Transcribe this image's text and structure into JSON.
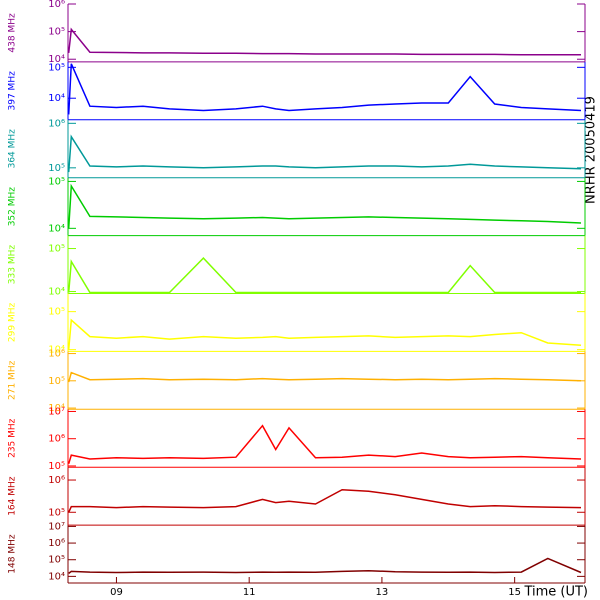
{
  "chart_data": {
    "type": "line",
    "title": "NRHR 20050419",
    "xlabel": "Time (UT)",
    "log_y": true,
    "xlim": [
      8.27,
      16.06
    ],
    "xticks": [
      {
        "value": 9,
        "label": "09"
      },
      {
        "value": 11,
        "label": "11"
      },
      {
        "value": 13,
        "label": "13"
      },
      {
        "value": 15,
        "label": "15"
      }
    ],
    "x": [
      8.28,
      8.32,
      8.6,
      9.0,
      9.4,
      9.8,
      10.31,
      10.8,
      11.2,
      11.4,
      11.6,
      12.0,
      12.4,
      12.8,
      13.2,
      13.6,
      14.0,
      14.33,
      14.7,
      15.1,
      15.5,
      16.0
    ],
    "series": [
      {
        "name": "438 MHz",
        "color": "#8b008b",
        "ylim": [
          8000,
          1000000
        ],
        "yticks": [
          {
            "value": 10000,
            "label": "10⁴"
          },
          {
            "value": 100000,
            "label": "10⁵"
          },
          {
            "value": 1000000,
            "label": "10⁶"
          }
        ],
        "values": [
          17000,
          120000,
          18000,
          17500,
          17000,
          17000,
          16500,
          16500,
          16000,
          16000,
          16000,
          15500,
          15500,
          15500,
          15500,
          15000,
          15000,
          15000,
          15000,
          14500,
          14500,
          14500
        ]
      },
      {
        "name": "397 MHz",
        "color": "#0000ff",
        "ylim": [
          2000,
          150000
        ],
        "yticks": [
          {
            "value": 10000,
            "label": "10⁴"
          },
          {
            "value": 100000,
            "label": "10⁵"
          }
        ],
        "values": [
          3000,
          130000,
          5500,
          5000,
          5500,
          4500,
          4000,
          4500,
          5500,
          4500,
          4000,
          4500,
          5000,
          6000,
          6500,
          7000,
          7000,
          50000,
          6500,
          5000,
          4500,
          4000
        ]
      },
      {
        "name": "364 MHz",
        "color": "#009999",
        "ylim": [
          60000,
          1200000
        ],
        "yticks": [
          {
            "value": 100000,
            "label": "10⁵"
          },
          {
            "value": 1000000,
            "label": "10⁶"
          }
        ],
        "values": [
          80000,
          500000,
          110000,
          105000,
          110000,
          105000,
          100000,
          105000,
          110000,
          110000,
          105000,
          100000,
          105000,
          110000,
          110000,
          105000,
          110000,
          120000,
          110000,
          105000,
          100000,
          95000
        ]
      },
      {
        "name": "352 MHz",
        "color": "#00cc00",
        "ylim": [
          7000,
          120000
        ],
        "yticks": [
          {
            "value": 10000,
            "label": "10⁴"
          },
          {
            "value": 100000,
            "label": "10⁵"
          }
        ],
        "values": [
          10000,
          80000,
          18000,
          17500,
          17000,
          16500,
          16000,
          16500,
          17000,
          16500,
          16000,
          16500,
          17000,
          17500,
          17000,
          16500,
          16000,
          15500,
          15000,
          14500,
          14000,
          13000
        ]
      },
      {
        "name": "333 MHz",
        "color": "#80ff00",
        "ylim": [
          9000,
          200000
        ],
        "yticks": [
          {
            "value": 10000,
            "label": "10⁴"
          },
          {
            "value": 100000,
            "label": "10⁵"
          }
        ],
        "values": [
          9500,
          50000,
          9500,
          9500,
          9500,
          9500,
          60000,
          9500,
          9500,
          9500,
          9500,
          9500,
          9500,
          9500,
          9500,
          9500,
          9500,
          40000,
          9500,
          9500,
          9500,
          9500
        ]
      },
      {
        "name": "299 MHz",
        "color": "#ffff00",
        "ylim": [
          9000,
          300000
        ],
        "yticks": [
          {
            "value": 10000,
            "label": "10⁴"
          },
          {
            "value": 100000,
            "label": "10⁵"
          }
        ],
        "values": [
          10000,
          60000,
          22000,
          20000,
          22000,
          19000,
          22000,
          20000,
          21000,
          22000,
          20000,
          21000,
          22000,
          23000,
          21000,
          22000,
          23000,
          22000,
          25000,
          28000,
          15000,
          13000
        ]
      },
      {
        "name": "271 MHz",
        "color": "#ffb000",
        "ylim": [
          9000,
          1200000
        ],
        "yticks": [
          {
            "value": 10000,
            "label": "10⁴"
          },
          {
            "value": 100000,
            "label": "10⁵"
          },
          {
            "value": 1000000,
            "label": "10⁶"
          }
        ],
        "values": [
          90000,
          200000,
          110000,
          115000,
          120000,
          110000,
          115000,
          110000,
          120000,
          115000,
          110000,
          115000,
          120000,
          115000,
          110000,
          115000,
          110000,
          115000,
          120000,
          115000,
          110000,
          100000
        ]
      },
      {
        "name": "235 MHz",
        "color": "#ff0000",
        "ylim": [
          90000,
          12000000
        ],
        "yticks": [
          {
            "value": 100000,
            "label": "10⁵"
          },
          {
            "value": 1000000,
            "label": "10⁶"
          },
          {
            "value": 10000000,
            "label": "10⁷"
          }
        ],
        "values": [
          120000,
          250000,
          180000,
          200000,
          190000,
          200000,
          190000,
          210000,
          3000000,
          400000,
          2500000,
          200000,
          210000,
          250000,
          220000,
          300000,
          220000,
          200000,
          210000,
          220000,
          200000,
          180000
        ]
      },
      {
        "name": "164 MHz",
        "color": "#c00000",
        "ylim": [
          40000,
          2500000
        ],
        "yticks": [
          {
            "value": 100000,
            "label": "10⁵"
          },
          {
            "value": 1000000,
            "label": "10⁶"
          }
        ],
        "values": [
          100000,
          150000,
          150000,
          140000,
          150000,
          145000,
          140000,
          150000,
          250000,
          200000,
          220000,
          180000,
          500000,
          450000,
          350000,
          250000,
          180000,
          150000,
          160000,
          150000,
          145000,
          140000
        ]
      },
      {
        "name": "148 MHz",
        "color": "#800000",
        "ylim": [
          4000,
          12000000
        ],
        "yticks": [
          {
            "value": 10000,
            "label": "10⁴"
          },
          {
            "value": 100000,
            "label": "10⁵"
          },
          {
            "value": 1000000,
            "label": "10⁶"
          },
          {
            "value": 10000000,
            "label": "10⁷"
          }
        ],
        "values": [
          15000,
          20000,
          18000,
          17000,
          18000,
          17500,
          18000,
          17000,
          18000,
          17500,
          18000,
          17500,
          20000,
          22000,
          19000,
          18000,
          17500,
          18000,
          17000,
          18000,
          120000,
          17000
        ]
      }
    ]
  }
}
